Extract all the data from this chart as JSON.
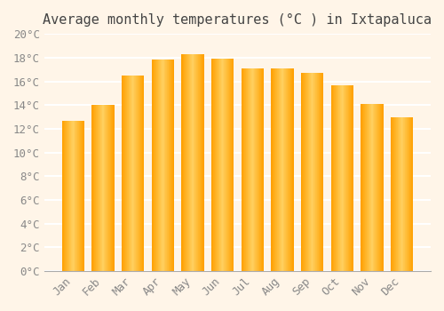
{
  "title": "Average monthly temperatures (°C ) in Ixtapaluca",
  "months": [
    "Jan",
    "Feb",
    "Mar",
    "Apr",
    "May",
    "Jun",
    "Jul",
    "Aug",
    "Sep",
    "Oct",
    "Nov",
    "Dec"
  ],
  "values": [
    12.7,
    14.0,
    16.5,
    17.8,
    18.3,
    17.9,
    17.1,
    17.1,
    16.7,
    15.7,
    14.1,
    13.0
  ],
  "bar_color_light": "#FFD060",
  "bar_color_dark": "#FFA000",
  "ylim": [
    0,
    20
  ],
  "ytick_step": 2,
  "background_color": "#FFF5E8",
  "plot_bg_color": "#FFF5E8",
  "grid_color": "#FFFFFF",
  "title_fontsize": 11,
  "tick_fontsize": 9,
  "tick_label_color": "#888888",
  "title_color": "#444444",
  "font_family": "monospace",
  "bar_width": 0.75
}
